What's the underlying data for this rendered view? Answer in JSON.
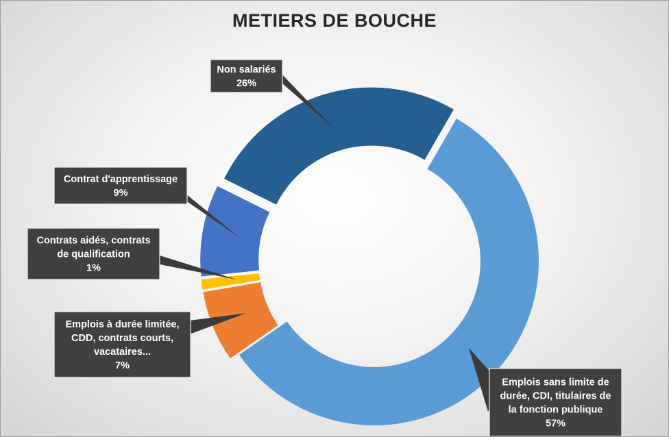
{
  "chart_data": {
    "type": "donut",
    "title": "METIERS DE BOUCHE",
    "slices": [
      {
        "label_lines": [
          "Emplois sans limite de",
          "durée, CDI, titulaires de",
          "la fonction publique"
        ],
        "percent_label": "57%",
        "value": 57,
        "color": "#5B9BD5"
      },
      {
        "label_lines": [
          "Emplois à durée limitée,",
          "CDD, contrats courts,",
          "vacataires..."
        ],
        "percent_label": "7%",
        "value": 7,
        "color": "#ED7D31"
      },
      {
        "label_lines": [
          "Contrats aidés, contrats",
          "de qualification"
        ],
        "percent_label": "1%",
        "value": 1,
        "color": "#FFC000"
      },
      {
        "label_lines": [
          "Contrat d'apprentissage"
        ],
        "percent_label": "9%",
        "value": 9,
        "color": "#4472C4"
      },
      {
        "label_lines": [
          "Non salariés"
        ],
        "percent_label": "26%",
        "value": 26,
        "color": "#255E91"
      }
    ]
  }
}
